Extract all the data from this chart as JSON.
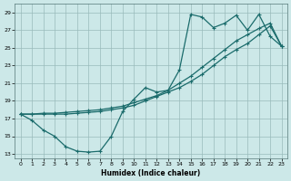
{
  "xlabel": "Humidex (Indice chaleur)",
  "xlim": [
    -0.5,
    23.5
  ],
  "ylim": [
    12.5,
    30.0
  ],
  "yticks": [
    13,
    15,
    17,
    19,
    21,
    23,
    25,
    27,
    29
  ],
  "xticks": [
    0,
    1,
    2,
    3,
    4,
    5,
    6,
    7,
    8,
    9,
    10,
    11,
    12,
    13,
    14,
    15,
    16,
    17,
    18,
    19,
    20,
    21,
    22,
    23
  ],
  "bg_color": "#cce8e8",
  "grid_color": "#99bbbb",
  "line_color": "#1a6b6b",
  "line1_x": [
    0,
    1,
    2,
    3,
    4,
    5,
    6,
    7,
    8,
    9,
    10,
    11,
    12,
    13,
    14,
    15,
    16,
    17,
    18,
    19,
    20,
    21,
    22,
    23
  ],
  "line1_y": [
    17.5,
    16.8,
    15.7,
    15.0,
    13.8,
    13.3,
    13.2,
    13.3,
    15.0,
    17.8,
    19.2,
    20.5,
    20.0,
    20.2,
    22.5,
    28.8,
    28.5,
    27.3,
    27.8,
    28.7,
    27.0,
    28.8,
    26.3,
    25.2
  ],
  "line2_x": [
    0,
    1,
    2,
    3,
    4,
    5,
    6,
    7,
    8,
    9,
    10,
    11,
    12,
    13,
    14,
    15,
    16,
    17,
    18,
    19,
    20,
    21,
    22,
    23
  ],
  "line2_y": [
    17.5,
    17.5,
    17.6,
    17.6,
    17.7,
    17.8,
    17.9,
    18.0,
    18.2,
    18.4,
    18.8,
    19.2,
    19.6,
    20.2,
    21.0,
    21.8,
    22.8,
    23.8,
    24.8,
    25.8,
    26.5,
    27.2,
    27.8,
    25.2
  ],
  "line3_x": [
    0,
    1,
    2,
    3,
    4,
    5,
    6,
    7,
    8,
    9,
    10,
    11,
    12,
    13,
    14,
    15,
    16,
    17,
    18,
    19,
    20,
    21,
    22,
    23
  ],
  "line3_y": [
    17.5,
    17.5,
    17.5,
    17.5,
    17.5,
    17.6,
    17.7,
    17.8,
    18.0,
    18.2,
    18.5,
    19.0,
    19.5,
    20.0,
    20.5,
    21.2,
    22.0,
    23.0,
    24.0,
    24.8,
    25.5,
    26.5,
    27.5,
    25.2
  ]
}
